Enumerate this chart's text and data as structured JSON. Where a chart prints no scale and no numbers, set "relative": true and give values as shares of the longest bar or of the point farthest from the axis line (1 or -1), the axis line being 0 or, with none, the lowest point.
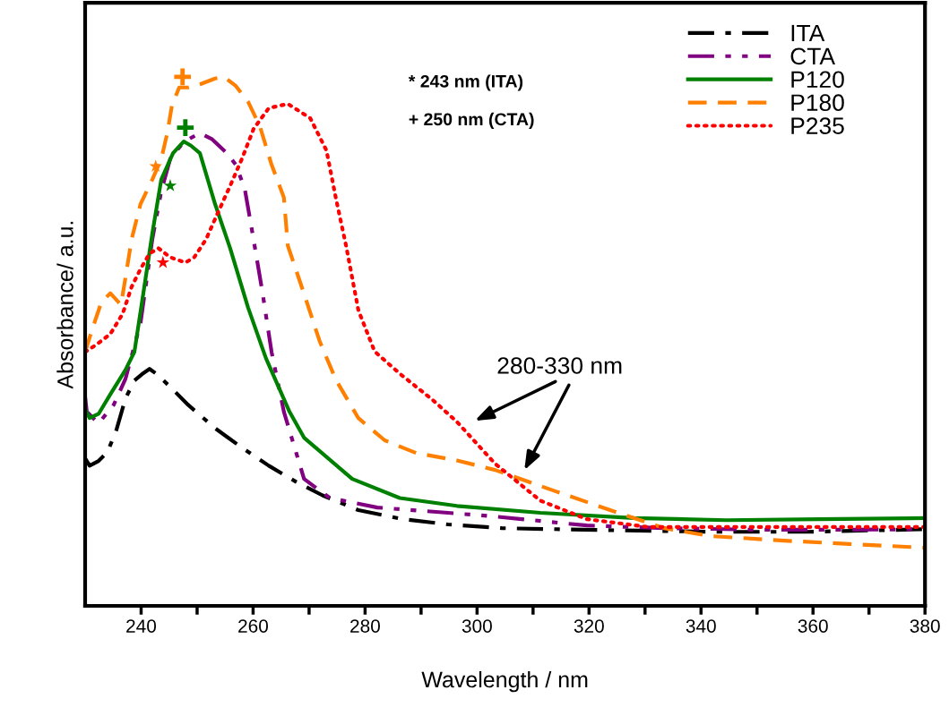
{
  "chart_data": {
    "type": "line",
    "relative": true,
    "xlabel": "Wavelength / nm",
    "ylabel": "Absorbance/ a.u.",
    "xlim": [
      230,
      380
    ],
    "xticks": [
      240,
      {
        "value": 250,
        "label": null
      },
      260,
      {
        "value": 270,
        "label": null
      },
      280,
      {
        "value": 290,
        "label": null
      },
      300,
      {
        "value": 310,
        "label": null
      },
      320,
      {
        "value": 330,
        "label": null
      },
      340,
      {
        "value": 350,
        "label": null
      },
      360,
      {
        "value": 370,
        "label": null
      },
      380
    ],
    "legend": "top right",
    "grid": false,
    "marker": "none",
    "series": [
      {
        "name": "ITA",
        "color": "#000000",
        "line_style": "dashdot",
        "x": [
          230,
          230.8,
          232.4,
          234,
          235.6,
          237.2,
          238.8,
          240.4,
          241.5,
          242.8,
          245.2,
          248.4,
          253.2,
          258,
          262.8,
          267.6,
          272.4,
          278.8,
          286.8,
          294.8,
          304.4,
          318.8,
          342.9,
          358.9,
          380
        ],
        "values": [
          0.279,
          0.265,
          0.274,
          0.291,
          0.333,
          0.392,
          0.426,
          0.44,
          0.448,
          0.438,
          0.414,
          0.38,
          0.336,
          0.299,
          0.265,
          0.235,
          0.209,
          0.181,
          0.164,
          0.154,
          0.147,
          0.144,
          0.14,
          0.14,
          0.145
        ]
      },
      {
        "name": "CTA",
        "color": "#800080",
        "line_style": "dashdotdot",
        "x": [
          230,
          230.3,
          232.4,
          235.1,
          237.2,
          239.9,
          242,
          243.6,
          245.2,
          247.6,
          250.5,
          252.7,
          255.3,
          256.9,
          258.5,
          259.9,
          261.7,
          263.3,
          265.5,
          269.1,
          273.7,
          282.2,
          294.8,
          303.2,
          319.6,
          333.4,
          350.1,
          366.5,
          380
        ],
        "values": [
          0.395,
          0.367,
          0.345,
          0.38,
          0.429,
          0.535,
          0.693,
          0.784,
          0.845,
          0.877,
          0.894,
          0.882,
          0.856,
          0.834,
          0.789,
          0.704,
          0.591,
          0.48,
          0.367,
          0.24,
          0.204,
          0.186,
          0.176,
          0.169,
          0.152,
          0.147,
          0.144,
          0.144,
          0.145
        ]
      },
      {
        "name": "P120",
        "color": "#008000",
        "line_style": "solid",
        "x": [
          230,
          230.8,
          232.4,
          234.5,
          237.2,
          238.8,
          240.4,
          242,
          243.6,
          245.7,
          247.6,
          248.9,
          250.5,
          253.2,
          255.9,
          259.1,
          262.3,
          266.5,
          269.1,
          277.7,
          286.2,
          296.4,
          311.3,
          328,
          344.5,
          361.1,
          380
        ],
        "values": [
          0.372,
          0.355,
          0.363,
          0.4,
          0.446,
          0.48,
          0.591,
          0.704,
          0.806,
          0.856,
          0.878,
          0.87,
          0.856,
          0.76,
          0.676,
          0.564,
          0.468,
          0.367,
          0.318,
          0.24,
          0.204,
          0.189,
          0.176,
          0.166,
          0.162,
          0.164,
          0.166
        ]
      },
      {
        "name": "P180",
        "color": "#ff8000",
        "line_style": "dashed",
        "x": [
          230,
          231.3,
          232.9,
          234.5,
          236.4,
          237.2,
          238.3,
          239.9,
          242,
          243.6,
          244.7,
          245.5,
          246.8,
          248.4,
          250.5,
          253.2,
          254.8,
          256.9,
          259.1,
          261.2,
          263.3,
          265.5,
          266.2,
          269.1,
          271.9,
          274.8,
          278.8,
          283.5,
          289.1,
          296.4,
          303.2,
          314.2,
          325.2,
          333.4,
          341.7,
          355.5,
          366.5,
          380
        ],
        "values": [
          0.48,
          0.524,
          0.574,
          0.591,
          0.569,
          0.62,
          0.693,
          0.76,
          0.806,
          0.845,
          0.895,
          0.946,
          0.98,
          0.98,
          0.986,
          0.997,
          1.0,
          0.983,
          0.953,
          0.907,
          0.834,
          0.772,
          0.681,
          0.59,
          0.5,
          0.427,
          0.355,
          0.313,
          0.289,
          0.275,
          0.257,
          0.216,
          0.176,
          0.147,
          0.132,
          0.123,
          0.117,
          0.11
        ]
      },
      {
        "name": "P235",
        "color": "#ff0000",
        "line_style": "dotted",
        "x": [
          230,
          231.9,
          234.5,
          236.7,
          238.3,
          239.9,
          241.5,
          243.1,
          245.2,
          247.9,
          249.5,
          251.6,
          253.7,
          255.9,
          258,
          260.1,
          262.8,
          266.2,
          270.2,
          273.1,
          274.8,
          276.6,
          278.8,
          281.7,
          286.2,
          292,
          296.4,
          303.2,
          311.3,
          319.6,
          330.7,
          350.1,
          380
        ],
        "values": [
          0.48,
          0.493,
          0.514,
          0.552,
          0.603,
          0.637,
          0.666,
          0.676,
          0.659,
          0.649,
          0.659,
          0.693,
          0.743,
          0.794,
          0.845,
          0.902,
          0.941,
          0.949,
          0.922,
          0.861,
          0.77,
          0.681,
          0.559,
          0.481,
          0.439,
          0.39,
          0.348,
          0.269,
          0.199,
          0.164,
          0.149,
          0.149,
          0.149
        ]
      },
      {
        "type": "scatter",
        "marker": "star",
        "color": "#ff8000",
        "x": [
          242.6
        ],
        "values": [
          0.831
        ]
      },
      {
        "type": "scatter",
        "marker": "cross",
        "color": "#ff8000",
        "x": [
          247.4
        ],
        "values": [
          1.0
        ]
      },
      {
        "type": "scatter",
        "marker": "cross",
        "color": "#008000",
        "x": [
          247.9
        ],
        "values": [
          0.904
        ]
      },
      {
        "type": "scatter",
        "marker": "star",
        "color": "#008000",
        "x": [
          245.2
        ],
        "values": [
          0.794
        ]
      },
      {
        "type": "scatter",
        "marker": "star",
        "color": "#ff0000",
        "x": [
          243.9
        ],
        "values": [
          0.649
        ]
      }
    ],
    "annotations": [
      "* 243 nm (ITA)",
      "+ 250 nm (CTA)",
      "280-330 nm"
    ]
  }
}
